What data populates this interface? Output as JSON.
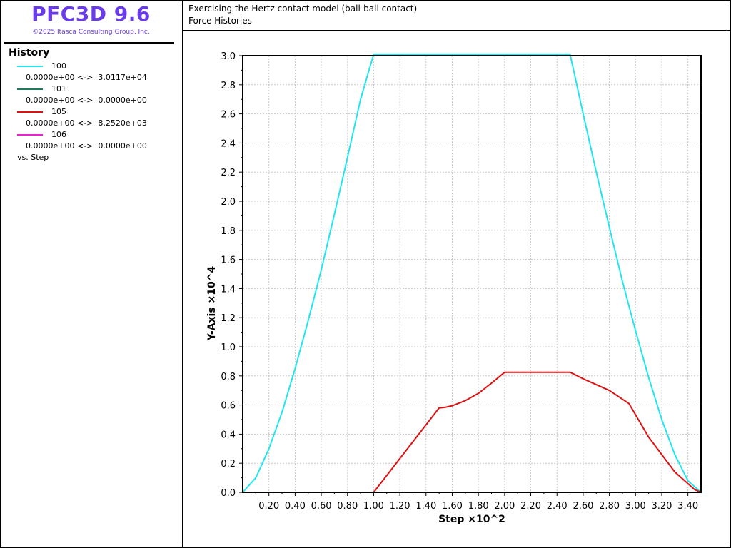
{
  "app": {
    "title": "PFC3D 9.6",
    "copyright": "©2025 Itasca Consulting Group, Inc."
  },
  "history_panel": {
    "title": "History",
    "items": [
      {
        "id": "100",
        "range": "0.0000e+00 <->  3.0117e+04",
        "color": "#22e5ee"
      },
      {
        "id": "101",
        "range": "0.0000e+00 <->  0.0000e+00",
        "color": "#1f7a5a"
      },
      {
        "id": "105",
        "range": "0.0000e+00 <->  8.2520e+03",
        "color": "#dd1111"
      },
      {
        "id": "106",
        "range": "0.0000e+00 <->  0.0000e+00",
        "color": "#ee22cc"
      }
    ],
    "vs_label": "vs. Step"
  },
  "plot": {
    "title": "Exercising the Hertz contact model (ball-ball contact)",
    "subtitle": "Force Histories"
  },
  "chart_data": {
    "type": "line",
    "xlabel": "Step ×10^2",
    "ylabel": "Y-Axis ×10^4",
    "xlim": [
      0.0,
      3.5
    ],
    "ylim": [
      0.0,
      3.0
    ],
    "xticks": [
      "0.20",
      "0.40",
      "0.60",
      "0.80",
      "1.00",
      "1.20",
      "1.40",
      "1.60",
      "1.80",
      "2.00",
      "2.20",
      "2.40",
      "2.60",
      "2.80",
      "3.00",
      "3.20",
      "3.40"
    ],
    "yticks": [
      "0.0",
      "0.2",
      "0.4",
      "0.6",
      "0.8",
      "1.0",
      "1.2",
      "1.4",
      "1.6",
      "1.8",
      "2.0",
      "2.2",
      "2.4",
      "2.6",
      "2.8",
      "3.0"
    ],
    "grid": true,
    "series": [
      {
        "name": "100",
        "color": "#22e5ee",
        "x": [
          0.0,
          0.1,
          0.2,
          0.3,
          0.4,
          0.5,
          0.6,
          0.7,
          0.8,
          0.9,
          1.0,
          2.5,
          2.6,
          2.7,
          2.8,
          2.9,
          3.0,
          3.1,
          3.2,
          3.3,
          3.4,
          3.5
        ],
        "y": [
          0.0,
          0.1,
          0.3,
          0.55,
          0.85,
          1.18,
          1.53,
          1.91,
          2.3,
          2.7,
          3.01,
          3.01,
          2.6,
          2.2,
          1.82,
          1.45,
          1.11,
          0.79,
          0.5,
          0.26,
          0.08,
          0.0
        ]
      },
      {
        "name": "101",
        "color": "#1f7a5a",
        "x": [
          0.0,
          3.5
        ],
        "y": [
          0.0,
          0.0
        ]
      },
      {
        "name": "105",
        "color": "#dd1111",
        "x": [
          0.0,
          1.0,
          1.5,
          1.55,
          1.6,
          1.7,
          1.8,
          1.9,
          2.0,
          2.5,
          2.6,
          2.8,
          2.95,
          3.1,
          3.3,
          3.45,
          3.5
        ],
        "y": [
          0.0,
          0.0,
          0.58,
          0.585,
          0.595,
          0.63,
          0.68,
          0.75,
          0.825,
          0.825,
          0.78,
          0.7,
          0.61,
          0.38,
          0.14,
          0.02,
          0.0
        ]
      },
      {
        "name": "106",
        "color": "#ee22cc",
        "x": [
          0.0,
          3.5
        ],
        "y": [
          0.0,
          0.0
        ]
      }
    ]
  }
}
